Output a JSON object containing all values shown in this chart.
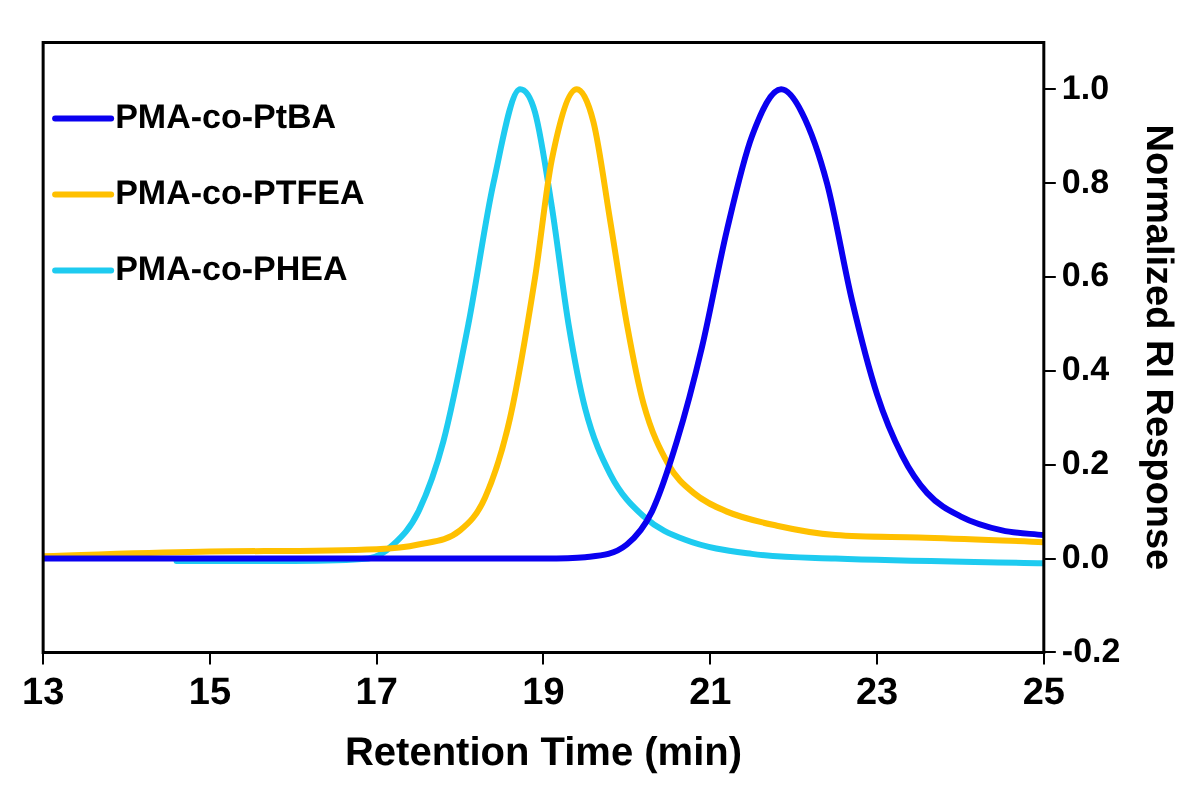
{
  "chart_data": {
    "type": "line",
    "xlabel": "Retention Time (min)",
    "ylabel": "Normalized RI Response",
    "xlim": [
      13,
      25
    ],
    "ylim": [
      -0.2,
      1.1
    ],
    "xticks": [
      13,
      15,
      17,
      19,
      21,
      23,
      25
    ],
    "yticks": [
      {
        "value": -0.2,
        "label": "-0.2"
      },
      {
        "value": 0,
        "label": "0.0"
      },
      0.2,
      0.4,
      0.6,
      0.8,
      {
        "value": 1,
        "label": "1.0"
      }
    ],
    "grid": false,
    "legend": "top left",
    "marker": "none",
    "line_style": "solid",
    "series": [
      {
        "name": "PMA-co-PtBA",
        "color": "#0a00f0",
        "x": [
          13,
          19,
          19.5,
          20,
          20.3,
          20.6,
          20.9,
          21.2,
          21.5,
          21.85,
          22.1,
          22.4,
          22.7,
          23,
          23.3,
          23.6,
          24,
          24.5,
          25
        ],
        "values": [
          0,
          0,
          0.003,
          0.03,
          0.1,
          0.25,
          0.45,
          0.7,
          0.9,
          1,
          0.95,
          0.8,
          0.55,
          0.35,
          0.22,
          0.14,
          0.09,
          0.06,
          0.05
        ]
      },
      {
        "name": "PMA-co-PTFEA",
        "color": "#ffc000",
        "x": [
          13,
          15,
          17,
          17.5,
          18,
          18.3,
          18.6,
          18.9,
          19.1,
          19.4,
          19.6,
          19.8,
          20,
          20.2,
          20.5,
          20.8,
          21.2,
          21.8,
          22.5,
          23.5,
          25
        ],
        "values": [
          0.005,
          0.015,
          0.02,
          0.03,
          0.06,
          0.13,
          0.3,
          0.6,
          0.85,
          1,
          0.93,
          0.72,
          0.5,
          0.33,
          0.2,
          0.14,
          0.1,
          0.07,
          0.05,
          0.045,
          0.035
        ]
      },
      {
        "name": "PMA-co-PHEA",
        "color": "#1ecbf0",
        "x": [
          14.6,
          16,
          16.9,
          17.2,
          17.5,
          17.8,
          18.1,
          18.4,
          18.72,
          18.9,
          19.1,
          19.3,
          19.5,
          19.8,
          20.2,
          20.7,
          21.5,
          22.5,
          25
        ],
        "values": [
          -0.005,
          -0.005,
          0,
          0.03,
          0.1,
          0.25,
          0.5,
          0.8,
          1,
          0.95,
          0.75,
          0.5,
          0.32,
          0.18,
          0.09,
          0.04,
          0.01,
          0,
          -0.01
        ]
      }
    ]
  }
}
